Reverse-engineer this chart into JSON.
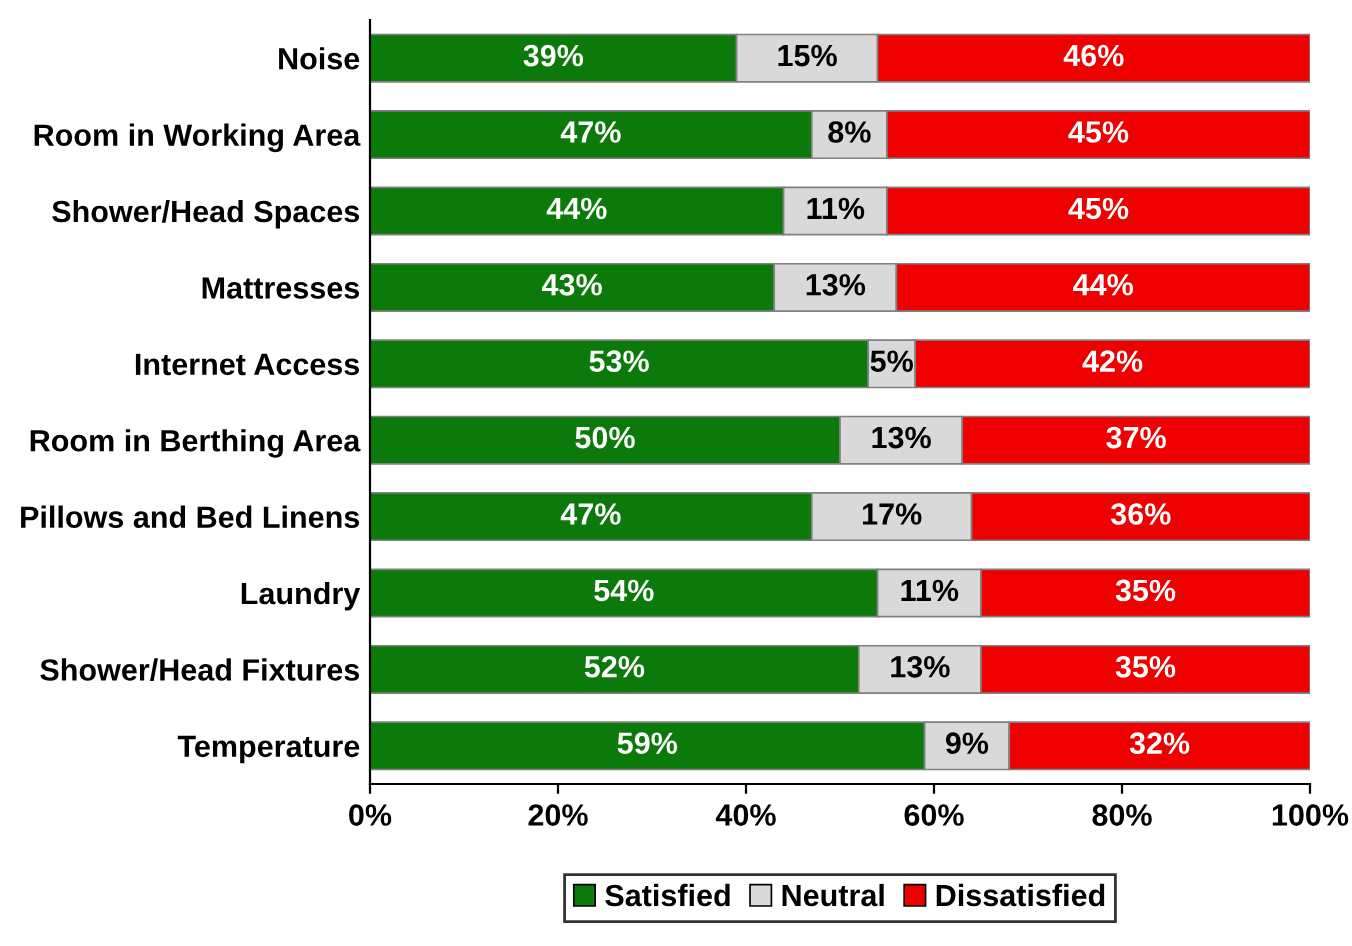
{
  "chart_data": {
    "type": "bar",
    "orientation": "horizontal",
    "stacked": true,
    "categories": [
      "Noise",
      "Room in Working Area",
      "Shower/Head Spaces",
      "Mattresses",
      "Internet Access",
      "Room in Berthing Area",
      "Pillows and Bed Linens",
      "Laundry",
      "Shower/Head Fixtures",
      "Temperature"
    ],
    "series": [
      {
        "name": "Satisfied",
        "color": "#0b7a0b",
        "values": [
          39,
          47,
          44,
          43,
          53,
          50,
          47,
          54,
          52,
          59
        ],
        "value_labels": [
          "39%",
          "47%",
          "44%",
          "43%",
          "53%",
          "50%",
          "47%",
          "54%",
          "52%",
          "59%"
        ]
      },
      {
        "name": "Neutral",
        "color": "#d9d9d9",
        "values": [
          15,
          8,
          11,
          13,
          5,
          13,
          17,
          11,
          13,
          9
        ],
        "value_labels": [
          "15%",
          "8%",
          "11%",
          "13%",
          "5%",
          "13%",
          "17%",
          "11%",
          "13%",
          "9%"
        ]
      },
      {
        "name": "Dissatisfied",
        "color": "#ee0000",
        "values": [
          46,
          45,
          45,
          44,
          42,
          37,
          36,
          35,
          35,
          32
        ],
        "value_labels": [
          "46%",
          "45%",
          "45%",
          "44%",
          "42%",
          "37%",
          "36%",
          "35%",
          "35%",
          "32%"
        ]
      }
    ],
    "xlim": [
      0,
      100
    ],
    "xticks": [
      {
        "value": 0,
        "label": "0%"
      },
      {
        "value": 20,
        "label": "20%"
      },
      {
        "value": 40,
        "label": "40%"
      },
      {
        "value": 60,
        "label": "60%"
      },
      {
        "value": 80,
        "label": "80%"
      },
      {
        "value": 100,
        "label": "100%"
      }
    ],
    "grid": false,
    "legend": "bottom"
  }
}
